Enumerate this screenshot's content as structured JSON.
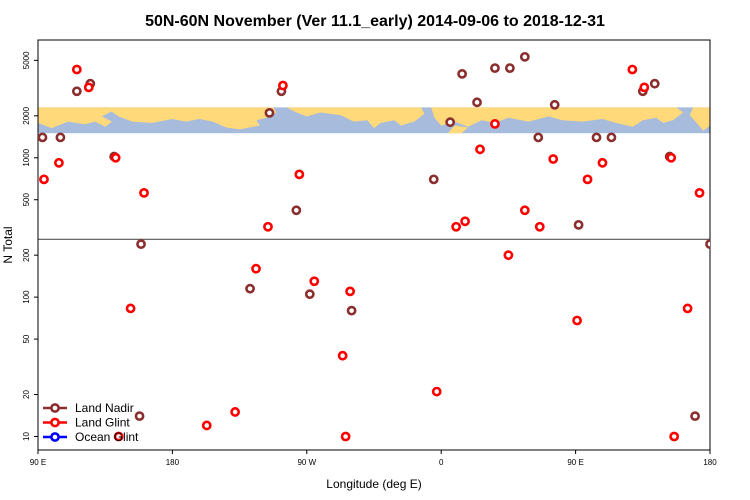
{
  "chart_data": {
    "type": "scatter",
    "title": "50N-60N November (Ver 11.1_early)   2014-09-06 to 2018-12-31",
    "xlabel": "Longitude (deg E)",
    "ylabel": "N Total",
    "x_scale": "longitude (continuous, starting at 90 E, wrapping through 180)",
    "y_scale": "log",
    "ylim": [
      8,
      7000
    ],
    "x_ticks": [
      "90 E",
      "180",
      "90 W",
      "0",
      "90 E",
      "180"
    ],
    "y_ticks": [
      "10",
      "20",
      "50",
      "100",
      "200",
      "500",
      "1000",
      "2000",
      "5000"
    ],
    "x_tick_values": [
      90,
      180,
      270,
      360,
      450,
      540
    ],
    "y_tick_values": [
      10,
      20,
      50,
      100,
      200,
      500,
      1000,
      2000,
      5000
    ],
    "xlim": [
      90,
      540
    ],
    "legend_position": "bottom-left",
    "grid": false,
    "map_strip": {
      "y_range_log": [
        1500,
        2300
      ],
      "ocean_color": "#a7bcdc",
      "land_color": "#ffd97a"
    },
    "separator_y": 260,
    "series": [
      {
        "name": "Land Nadir",
        "color": "#8b2e2e",
        "points": [
          [
            93,
            1400
          ],
          [
            105,
            1400
          ],
          [
            116,
            3000
          ],
          [
            125,
            3400
          ],
          [
            141,
            1020
          ],
          [
            158,
            14
          ],
          [
            159,
            240
          ],
          [
            232,
            115
          ],
          [
            245,
            2100
          ],
          [
            253,
            3000
          ],
          [
            263,
            420
          ],
          [
            272,
            105
          ],
          [
            300,
            80
          ],
          [
            355,
            700
          ],
          [
            366,
            1800
          ],
          [
            374,
            4000
          ],
          [
            384,
            2500
          ],
          [
            396,
            4400
          ],
          [
            406,
            4400
          ],
          [
            416,
            5300
          ],
          [
            425,
            1400
          ],
          [
            436,
            2400
          ],
          [
            452,
            330
          ],
          [
            464,
            1400
          ],
          [
            474,
            1400
          ],
          [
            495,
            3000
          ],
          [
            503,
            3400
          ],
          [
            513,
            1020
          ],
          [
            530,
            14
          ],
          [
            540,
            240
          ]
        ]
      },
      {
        "name": "Land Glint",
        "color": "#ff0000",
        "points": [
          [
            94,
            700
          ],
          [
            104,
            920
          ],
          [
            116,
            4300
          ],
          [
            124,
            3200
          ],
          [
            142,
            1000
          ],
          [
            144,
            10
          ],
          [
            152,
            83
          ],
          [
            161,
            560
          ],
          [
            203,
            12
          ],
          [
            222,
            15
          ],
          [
            236,
            160
          ],
          [
            244,
            320
          ],
          [
            254,
            3300
          ],
          [
            265,
            760
          ],
          [
            275,
            130
          ],
          [
            294,
            38
          ],
          [
            299,
            110
          ],
          [
            296,
            10
          ],
          [
            357,
            21
          ],
          [
            370,
            320
          ],
          [
            376,
            350
          ],
          [
            386,
            1150
          ],
          [
            396,
            1750
          ],
          [
            405,
            200
          ],
          [
            416,
            420
          ],
          [
            426,
            320
          ],
          [
            435,
            980
          ],
          [
            451,
            68
          ],
          [
            458,
            700
          ],
          [
            468,
            920
          ],
          [
            488,
            4300
          ],
          [
            496,
            3200
          ],
          [
            514,
            1000
          ],
          [
            516,
            10
          ],
          [
            525,
            83
          ],
          [
            533,
            560
          ]
        ]
      },
      {
        "name": "Ocean Glint",
        "color": "#0000ff",
        "points": []
      }
    ]
  }
}
